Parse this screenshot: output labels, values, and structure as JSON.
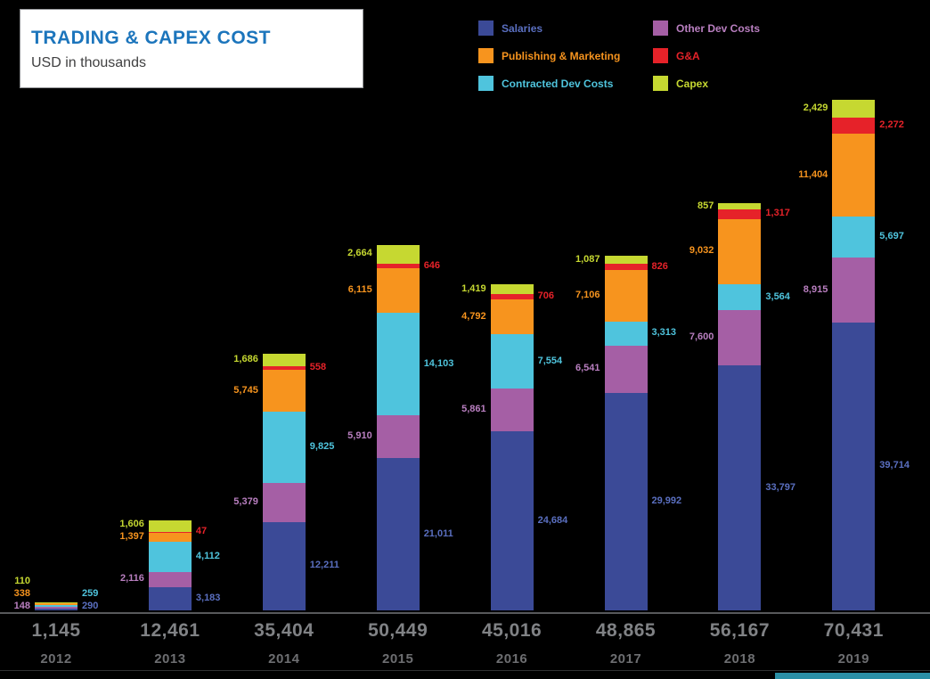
{
  "header": {
    "title": "TRADING & CAPEX COST",
    "subtitle": "USD in thousands"
  },
  "theme": {
    "background": "#000000",
    "box_bg": "#ffffff",
    "box_border": "#939598",
    "title_color": "#1c75bc",
    "subtitle_color": "#404041",
    "divider": "#58595b",
    "totals_color": "#808285",
    "years_color": "#6d6e71",
    "accent_bar": "#2b8fa6"
  },
  "legend": {
    "position": "top-right",
    "items": [
      {
        "label": "Salaries",
        "color": "#3b4a97",
        "text_color": "#5a6fc0"
      },
      {
        "label": "Publishing & Marketing",
        "color": "#f7941e",
        "text_color": "#f7941e"
      },
      {
        "label": "Contracted Dev Costs",
        "color": "#4fc4dd",
        "text_color": "#4fc4dd"
      },
      {
        "label": "Other Dev Costs",
        "color": "#a55fa5",
        "text_color": "#b97fc0"
      },
      {
        "label": "G&A",
        "color": "#e62229",
        "text_color": "#e62229"
      },
      {
        "label": "Capex",
        "color": "#c6d831",
        "text_color": "#c6d831"
      }
    ]
  },
  "chart_data": {
    "type": "bar",
    "stacked": true,
    "title": "TRADING & CAPEX COST",
    "subtitle": "USD in thousands",
    "units": "USD thousands",
    "grid": false,
    "legend_position": "top-right",
    "categories": [
      "2012",
      "2013",
      "2014",
      "2015",
      "2016",
      "2017",
      "2018",
      "2019"
    ],
    "totals": [
      1145,
      12461,
      35404,
      50449,
      45016,
      48865,
      56167,
      70431
    ],
    "series": [
      {
        "name": "Salaries",
        "color": "#3b4a97",
        "label_color": "#5a6fc0",
        "label_side": "right",
        "values": [
          290,
          3183,
          12211,
          21011,
          24684,
          29992,
          33797,
          39714
        ]
      },
      {
        "name": "Other Dev Costs",
        "color": "#a55fa5",
        "label_color": "#b97fc0",
        "label_side": "left",
        "values": [
          148,
          2116,
          5379,
          5910,
          5861,
          6541,
          7600,
          8915
        ]
      },
      {
        "name": "Contracted Dev Costs",
        "color": "#4fc4dd",
        "label_color": "#4fc4dd",
        "label_side": "right",
        "values": [
          259,
          4112,
          9825,
          14103,
          7554,
          3313,
          3564,
          5697
        ]
      },
      {
        "name": "Publishing & Marketing",
        "color": "#f7941e",
        "label_color": "#f7941e",
        "label_side": "left",
        "values": [
          338,
          1397,
          5745,
          6115,
          4792,
          7106,
          9032,
          11404
        ]
      },
      {
        "name": "G&A",
        "color": "#e62229",
        "label_color": "#e62229",
        "label_side": "right",
        "values": [
          0,
          47,
          558,
          646,
          706,
          826,
          1317,
          2272
        ]
      },
      {
        "name": "Capex",
        "color": "#c6d831",
        "label_color": "#c6d831",
        "label_side": "left",
        "values": [
          110,
          1606,
          1686,
          2664,
          1419,
          1087,
          857,
          2429
        ]
      }
    ]
  }
}
